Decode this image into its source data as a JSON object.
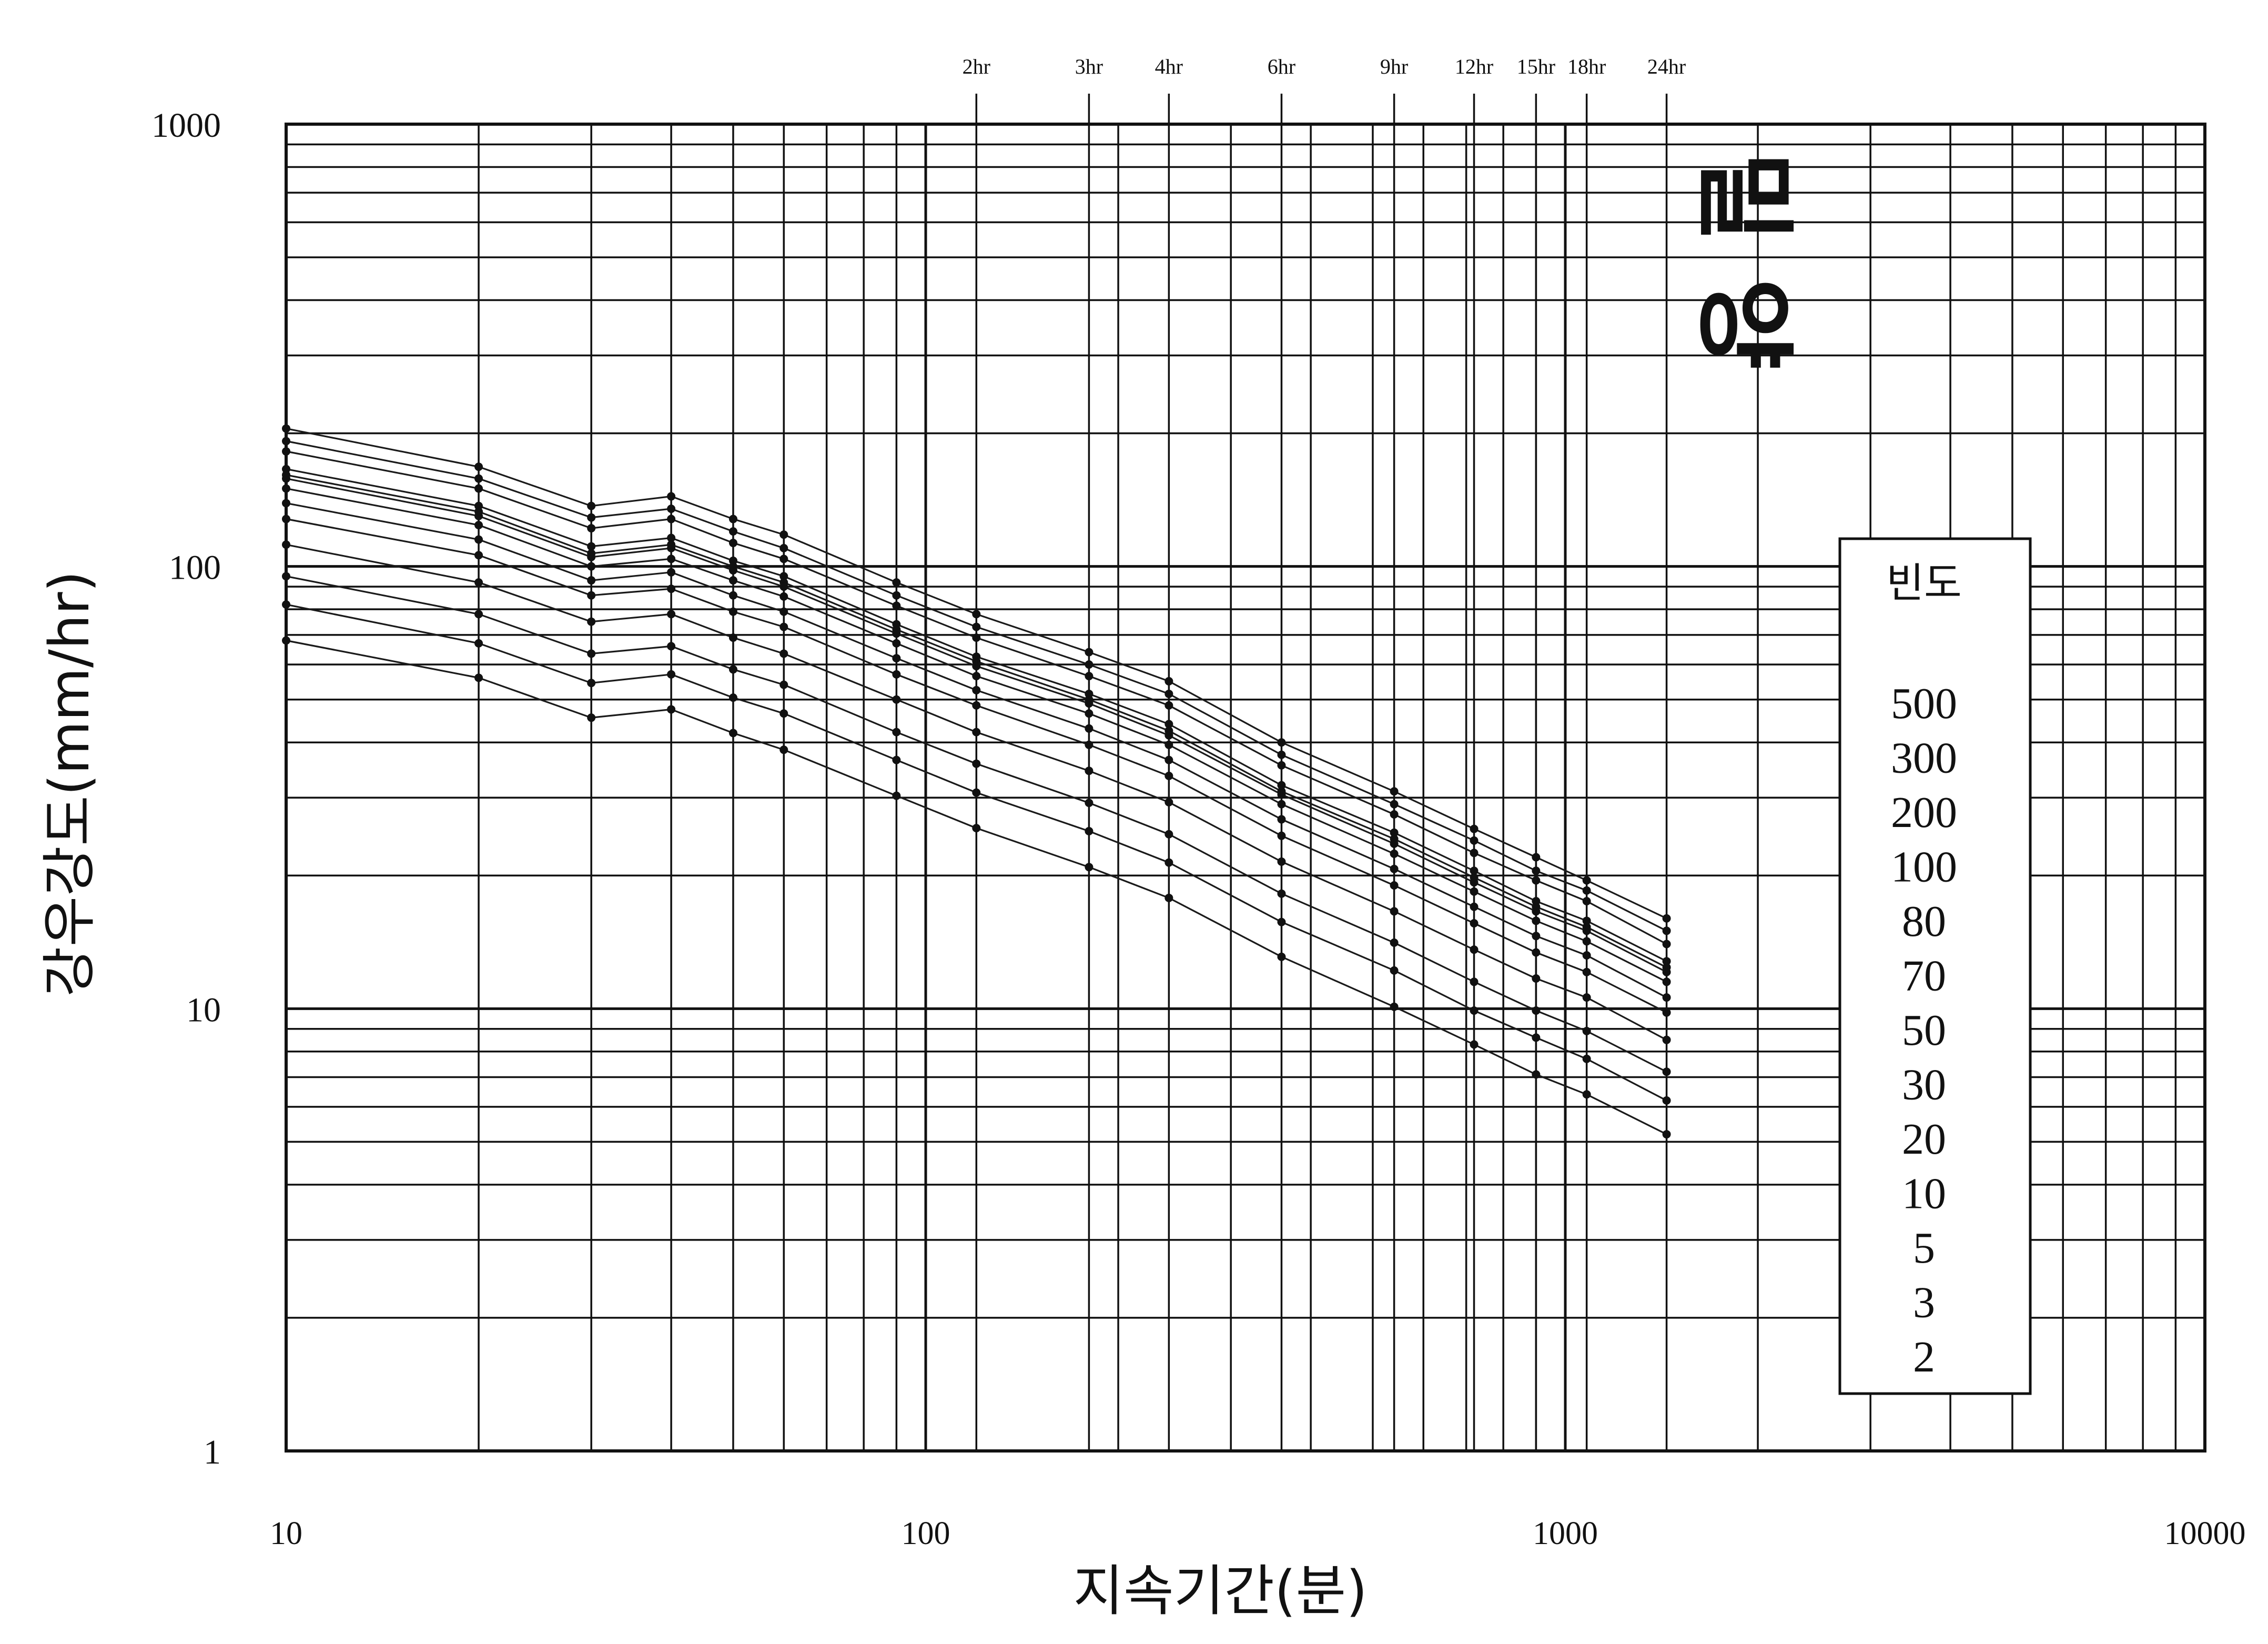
{
  "chart_data": {
    "type": "line",
    "title": "밀  양",
    "xlabel": "지속기간(분)",
    "ylabel": "강우강도(mm/hr)",
    "x_scale": "log",
    "y_scale": "log",
    "xlim": [
      10,
      10000
    ],
    "ylim": [
      1,
      1000
    ],
    "grid": true,
    "x_tick_labels": [
      {
        "value": 10,
        "label": "10"
      },
      {
        "value": 100,
        "label": "100"
      },
      {
        "value": 1000,
        "label": "1000"
      },
      {
        "value": 10000,
        "label": "10000"
      }
    ],
    "y_tick_labels": [
      {
        "value": 1,
        "label": "1"
      },
      {
        "value": 10,
        "label": "10"
      },
      {
        "value": 100,
        "label": "100"
      },
      {
        "value": 1000,
        "label": "1000"
      }
    ],
    "duration_markers": [
      {
        "value": 120,
        "label": "2hr"
      },
      {
        "value": 180,
        "label": "3hr"
      },
      {
        "value": 240,
        "label": "4hr"
      },
      {
        "value": 360,
        "label": "6hr"
      },
      {
        "value": 540,
        "label": "9hr"
      },
      {
        "value": 720,
        "label": "12hr"
      },
      {
        "value": 900,
        "label": "15hr"
      },
      {
        "value": 1080,
        "label": "18hr"
      },
      {
        "value": 1440,
        "label": "24hr"
      }
    ],
    "legend": {
      "title": "빈도",
      "entries": [
        "500",
        "300",
        "200",
        "100",
        "80",
        "70",
        "50",
        "30",
        "20",
        "10",
        "5",
        "3",
        "2"
      ],
      "placement": "right"
    },
    "x": [
      10,
      20,
      30,
      40,
      50,
      60,
      90,
      120,
      180,
      240,
      360,
      540,
      720,
      900,
      1080,
      1440
    ],
    "series": [
      {
        "name": "500",
        "values": [
          205,
          168,
          137,
          144,
          128,
          118,
          92,
          78,
          64,
          55,
          40,
          31,
          25.5,
          22,
          19.5,
          16
        ]
      },
      {
        "name": "300",
        "values": [
          192,
          158,
          129,
          135,
          120,
          110,
          86,
          73,
          60,
          51.5,
          37.5,
          29,
          24,
          20.5,
          18.5,
          15
        ]
      },
      {
        "name": "200",
        "values": [
          182,
          150,
          122,
          128,
          113,
          104,
          81.5,
          69,
          56.5,
          48.5,
          35.5,
          27.5,
          22.5,
          19.5,
          17.5,
          14
        ]
      },
      {
        "name": "100",
        "values": [
          166,
          137,
          111,
          116,
          103,
          95,
          74,
          62.5,
          51.5,
          44,
          32,
          25,
          20.5,
          17.5,
          15.8,
          12.8
        ]
      },
      {
        "name": "80",
        "values": [
          161,
          133,
          107,
          112,
          100,
          92,
          72,
          61,
          50,
          42.5,
          31,
          24.2,
          19.8,
          17,
          15.3,
          12.4
        ]
      },
      {
        "name": "70",
        "values": [
          158,
          130,
          105,
          110,
          98,
          90,
          70.5,
          59.5,
          49,
          41.5,
          30.5,
          23.6,
          19.3,
          16.6,
          15,
          12.1
        ]
      },
      {
        "name": "50",
        "values": [
          150,
          124,
          100,
          104,
          93,
          85.5,
          67,
          56.5,
          46.5,
          39.5,
          29,
          22.4,
          18.4,
          15.8,
          14.2,
          11.5
        ]
      },
      {
        "name": "30",
        "values": [
          139,
          115,
          93,
          97,
          86,
          79,
          62,
          52.5,
          43,
          36.5,
          26.8,
          20.7,
          17,
          14.6,
          13.2,
          10.6
        ]
      },
      {
        "name": "20",
        "values": [
          128,
          106,
          86,
          89,
          79,
          73,
          57,
          48.5,
          39.5,
          33.6,
          24.6,
          19,
          15.6,
          13.4,
          12.1,
          9.8
        ]
      },
      {
        "name": "10",
        "values": [
          112,
          92,
          75,
          78,
          69,
          63.5,
          50,
          42.2,
          34.5,
          29.3,
          21.5,
          16.6,
          13.6,
          11.7,
          10.6,
          8.5
        ]
      },
      {
        "name": "5",
        "values": [
          95,
          78,
          63.5,
          66,
          58.5,
          54,
          42.2,
          35.8,
          29.2,
          24.8,
          18.2,
          14.1,
          11.5,
          9.9,
          8.9,
          7.2
        ]
      },
      {
        "name": "3",
        "values": [
          82,
          67,
          54.5,
          57,
          50.5,
          46.5,
          36.5,
          30.8,
          25.2,
          21.4,
          15.7,
          12.2,
          9.9,
          8.6,
          7.7,
          6.2
        ]
      },
      {
        "name": "2",
        "values": [
          68,
          56,
          45.5,
          47.5,
          42,
          38.5,
          30.3,
          25.6,
          20.9,
          17.8,
          13.1,
          10.1,
          8.3,
          7.1,
          6.4,
          5.2
        ]
      }
    ]
  }
}
